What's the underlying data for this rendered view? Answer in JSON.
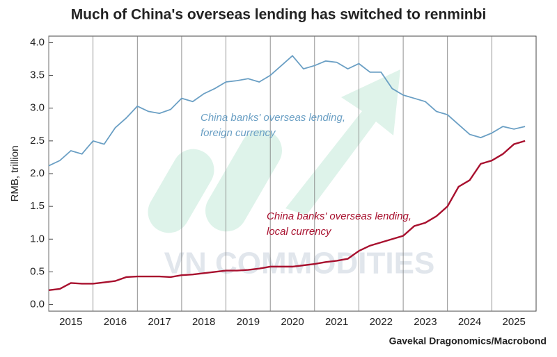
{
  "chart_data": {
    "type": "line",
    "title": "Much of China's overseas lending has switched to renminbi",
    "y_label": "RMB, trillion",
    "source": "Gavekal Dragonomics/Macrobond",
    "watermark": "VN COMMODITIES",
    "x": [
      2015.0,
      2015.25,
      2015.5,
      2015.75,
      2016.0,
      2016.25,
      2016.5,
      2016.75,
      2017.0,
      2017.25,
      2017.5,
      2017.75,
      2018.0,
      2018.25,
      2018.5,
      2018.75,
      2019.0,
      2019.25,
      2019.5,
      2019.75,
      2020.0,
      2020.25,
      2020.5,
      2020.75,
      2021.0,
      2021.25,
      2021.5,
      2021.75,
      2022.0,
      2022.25,
      2022.5,
      2022.75,
      2023.0,
      2023.25,
      2023.5,
      2023.75,
      2024.0,
      2024.25,
      2024.5,
      2024.75,
      2025.0,
      2025.25,
      2025.5,
      2025.75
    ],
    "series": [
      {
        "name": "China banks' overseas lending, foreign currency",
        "label_lines": [
          "China banks' overseas lending,",
          "foreign currency"
        ],
        "color": "#6a9fc4",
        "values": [
          2.12,
          2.2,
          2.35,
          2.3,
          2.5,
          2.45,
          2.7,
          2.85,
          3.03,
          2.95,
          2.92,
          2.98,
          3.15,
          3.1,
          3.22,
          3.3,
          3.4,
          3.42,
          3.45,
          3.4,
          3.5,
          3.65,
          3.8,
          3.6,
          3.65,
          3.72,
          3.7,
          3.6,
          3.68,
          3.55,
          3.55,
          3.3,
          3.2,
          3.15,
          3.1,
          2.95,
          2.9,
          2.75,
          2.6,
          2.55,
          2.62,
          2.72,
          2.68,
          2.72
        ]
      },
      {
        "name": "China banks' overseas lending, local currency",
        "label_lines": [
          "China banks' overseas lending,",
          "local currency"
        ],
        "color": "#a8102e",
        "values": [
          0.22,
          0.24,
          0.33,
          0.32,
          0.32,
          0.34,
          0.36,
          0.42,
          0.43,
          0.43,
          0.43,
          0.42,
          0.45,
          0.46,
          0.48,
          0.5,
          0.52,
          0.52,
          0.53,
          0.55,
          0.58,
          0.58,
          0.58,
          0.6,
          0.62,
          0.65,
          0.67,
          0.7,
          0.82,
          0.9,
          0.95,
          1.0,
          1.05,
          1.2,
          1.25,
          1.35,
          1.5,
          1.8,
          1.9,
          2.15,
          2.2,
          2.3,
          2.45,
          2.5
        ]
      }
    ],
    "xlim": [
      2015,
      2026
    ],
    "xticks": [
      {
        "value": 2015,
        "label": "2015"
      },
      {
        "value": 2016,
        "label": "2016"
      },
      {
        "value": 2017,
        "label": "2017"
      },
      {
        "value": 2018,
        "label": "2018"
      },
      {
        "value": 2019,
        "label": "2019"
      },
      {
        "value": 2020,
        "label": "2020"
      },
      {
        "value": 2021,
        "label": "2021"
      },
      {
        "value": 2022,
        "label": "2022"
      },
      {
        "value": 2023,
        "label": "2023"
      },
      {
        "value": 2024,
        "label": "2024"
      },
      {
        "value": 2025,
        "label": "2025"
      }
    ],
    "ylim": [
      -0.1,
      4.1
    ],
    "yticks": [
      {
        "value": 0,
        "label": "0.0"
      },
      {
        "value": 0.5,
        "label": "0.5"
      },
      {
        "value": 1,
        "label": "1.0"
      },
      {
        "value": 1.5,
        "label": "1.5"
      },
      {
        "value": 2,
        "label": "2.0"
      },
      {
        "value": 2.5,
        "label": "2.5"
      },
      {
        "value": 3,
        "label": "3.0"
      },
      {
        "value": 3.5,
        "label": "3.5"
      },
      {
        "value": 4,
        "label": "4.0"
      }
    ]
  }
}
